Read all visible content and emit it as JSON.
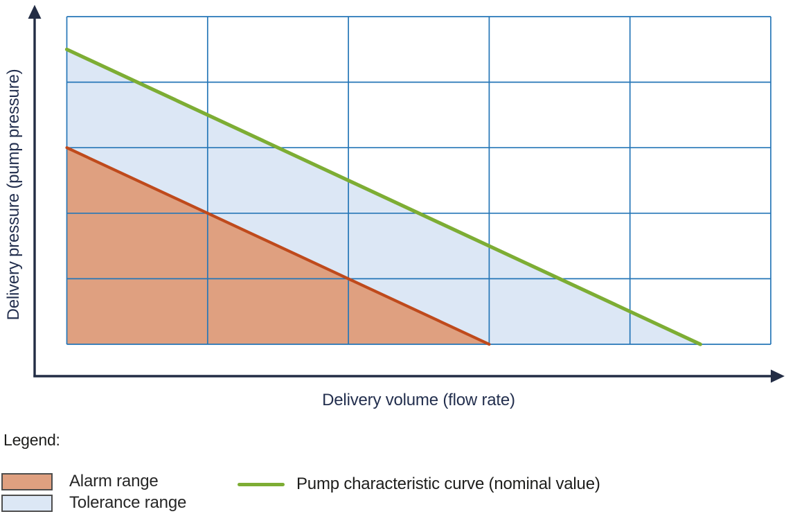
{
  "chart_data": {
    "type": "area",
    "title": "",
    "xlabel": "Delivery volume (flow rate)",
    "ylabel": "Delivery pressure (pump pressure)",
    "xlim": [
      0,
      5
    ],
    "ylim": [
      0,
      5
    ],
    "x_tick_labels": [],
    "y_tick_labels": [],
    "grid": {
      "show": true,
      "x_divisions": 5,
      "y_divisions": 5,
      "color": "#2576b7",
      "width": 1.7
    },
    "axes_style": {
      "arrow_color": "#232d45",
      "width": 3.4
    },
    "series": [
      {
        "id": "tolerance",
        "name": "Tolerance range",
        "type": "area",
        "fill_color": "#dce7f5",
        "polygon": [
          [
            0,
            3
          ],
          [
            0,
            4.5
          ],
          [
            4.5,
            0
          ],
          [
            3,
            0
          ]
        ]
      },
      {
        "id": "alarm",
        "name": "Alarm range",
        "type": "area",
        "fill_color": "#dfa080",
        "polygon": [
          [
            0,
            0
          ],
          [
            0,
            3
          ],
          [
            3,
            0
          ]
        ],
        "boundary": [
          [
            0,
            3
          ],
          [
            3,
            0
          ]
        ],
        "boundary_color": "#bf4a1c",
        "boundary_width": 4.2
      },
      {
        "id": "nominal",
        "name": "Pump characteristic curve (nominal value)",
        "type": "line",
        "color": "#7dad34",
        "width": 5.2,
        "points": [
          [
            0,
            4.5
          ],
          [
            4.5,
            0
          ]
        ]
      }
    ],
    "legend_position": "bottom"
  },
  "legend": {
    "title": "Legend:",
    "items": [
      {
        "id": "alarm",
        "label": "Alarm range",
        "swatch_type": "box",
        "fill": "#dfa080",
        "border": "#4d4d4d"
      },
      {
        "id": "tolerance",
        "label": "Tolerance range",
        "swatch_type": "box",
        "fill": "#dce7f5",
        "border": "#4d4d4d"
      },
      {
        "id": "nominal",
        "label": "Pump characteristic curve (nominal value)",
        "swatch_type": "line",
        "color": "#7dad34"
      }
    ]
  }
}
